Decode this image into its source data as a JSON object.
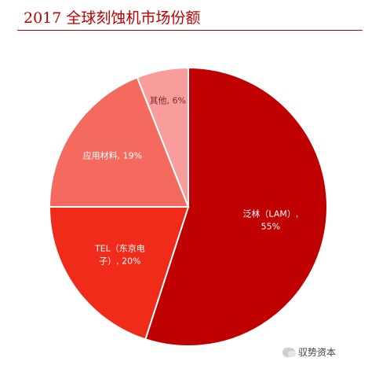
{
  "chart_data": {
    "type": "pie",
    "title": "2017 全球刻蚀机市场份额",
    "slices": [
      {
        "label": "泛林（LAM）",
        "value": 55,
        "color": "#c00000",
        "label_color": "#ffffff"
      },
      {
        "label": "TEL（东京电子）",
        "value": 20,
        "color": "#f02b1a",
        "label_color": "#ffffff"
      },
      {
        "label": "应用材料",
        "value": 19,
        "color": "#f46a5e",
        "label_color": "#ffffff"
      },
      {
        "label": "其他",
        "value": 6,
        "color": "#f89c9c",
        "label_color": "#7a2a2a"
      }
    ],
    "slice_texts": [
      [
        "泛林（LAM）,",
        "55%"
      ],
      [
        "TEL（东京电",
        "子）, 20%"
      ],
      [
        "应用材料, 19%"
      ],
      [
        "其他, 6%"
      ]
    ]
  },
  "watermark": "驭势资本"
}
